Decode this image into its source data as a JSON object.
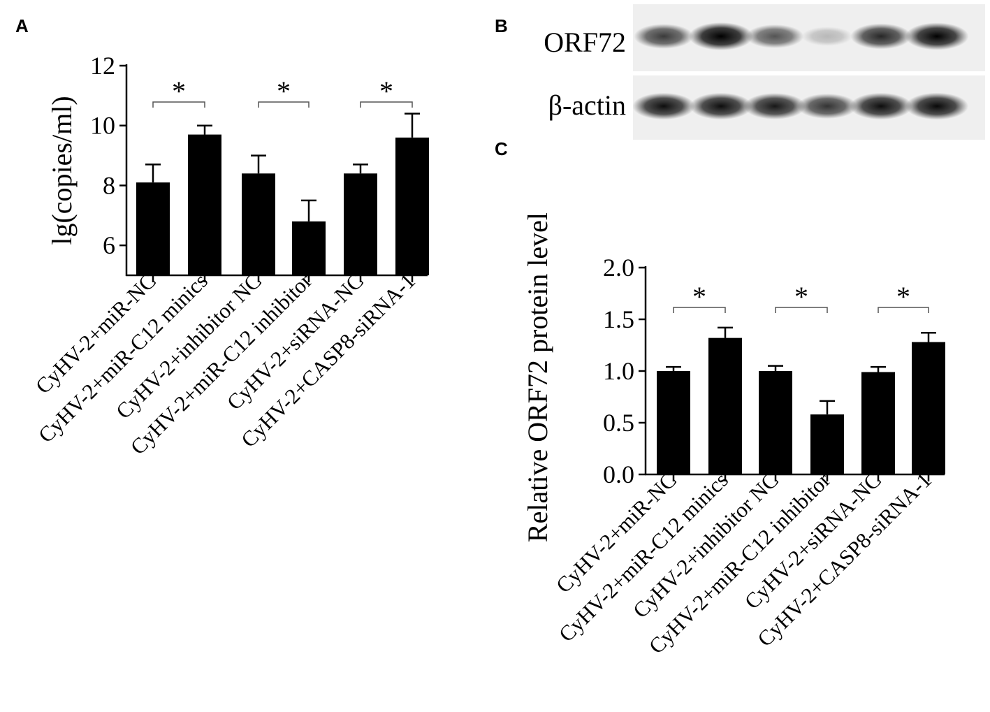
{
  "panels": {
    "a": "A",
    "b": "B",
    "c": "C"
  },
  "blot": {
    "rows": [
      {
        "label": "ORF72",
        "intensities": [
          0.72,
          1.0,
          0.62,
          0.22,
          0.8,
          0.95
        ]
      },
      {
        "label": "β-actin",
        "intensities": [
          0.9,
          0.9,
          0.86,
          0.75,
          0.9,
          0.92
        ]
      }
    ]
  },
  "chart_data": [
    {
      "panel": "A",
      "type": "bar",
      "ylabel": "lg(copies/ml)",
      "ylim": [
        5,
        12
      ],
      "yticks": [
        6,
        8,
        10,
        12
      ],
      "categories": [
        "CyHV-2+miR-NC",
        "CyHV-2+miR-C12 minics",
        "CyHV-2+inhibitor NC",
        "CyHV-2+miR-C12 inhibitor",
        "CyHV-2+siRNA-NC",
        "CyHV-2+CASP8-siRNA-1"
      ],
      "values": [
        8.1,
        9.7,
        8.4,
        6.8,
        8.4,
        9.6
      ],
      "errors": [
        0.6,
        0.3,
        0.6,
        0.7,
        0.3,
        0.8
      ],
      "significance": [
        {
          "pair": [
            0,
            1
          ],
          "label": "*"
        },
        {
          "pair": [
            2,
            3
          ],
          "label": "*"
        },
        {
          "pair": [
            4,
            5
          ],
          "label": "*"
        }
      ],
      "bar_color": "#000000"
    },
    {
      "panel": "C",
      "type": "bar",
      "ylabel": "Relative ORF72 protein  level",
      "ylim": [
        0,
        2.0
      ],
      "yticks": [
        "0.0",
        "0.5",
        "1.0",
        "1.5",
        "2.0"
      ],
      "categories": [
        "CyHV-2+miR-NC",
        "CyHV-2+miR-C12 minics",
        "CyHV-2+inhibitor NC",
        "CyHV-2+miR-C12 inhibitor",
        "CyHV-2+siRNA-NC",
        "CyHV-2+CASP8-siRNA-1"
      ],
      "values": [
        1.0,
        1.32,
        1.0,
        0.58,
        0.99,
        1.28
      ],
      "errors": [
        0.04,
        0.1,
        0.05,
        0.13,
        0.05,
        0.09
      ],
      "significance": [
        {
          "pair": [
            0,
            1
          ],
          "label": "*"
        },
        {
          "pair": [
            2,
            3
          ],
          "label": "*"
        },
        {
          "pair": [
            4,
            5
          ],
          "label": "*"
        }
      ],
      "bar_color": "#000000"
    }
  ]
}
